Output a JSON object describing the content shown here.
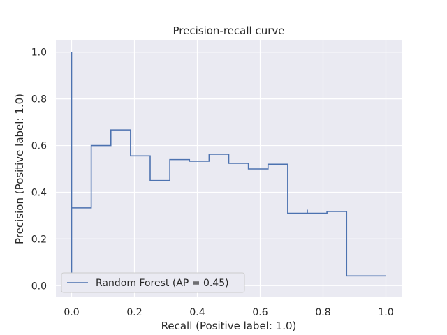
{
  "chart_data": {
    "type": "line",
    "title": "Precision-recall curve",
    "xlabel": "Recall (Positive label: 1.0)",
    "ylabel": "Precision (Positive label: 1.0)",
    "xlim": [
      -0.05,
      1.05
    ],
    "ylim": [
      -0.05,
      1.05
    ],
    "xticks": [
      0.0,
      0.2,
      0.4,
      0.6,
      0.8,
      1.0
    ],
    "yticks": [
      0.0,
      0.2,
      0.4,
      0.6,
      0.8,
      1.0
    ],
    "xtick_labels": [
      "0.0",
      "0.2",
      "0.4",
      "0.6",
      "0.8",
      "1.0"
    ],
    "ytick_labels": [
      "0.0",
      "0.2",
      "0.4",
      "0.6",
      "0.8",
      "1.0"
    ],
    "grid": true,
    "drawstyle": "steps-post",
    "legend_position": "lower-left",
    "colors": {
      "background": "#eaeaf2",
      "grid": "#ffffff",
      "line": "#4c72b0"
    },
    "series": [
      {
        "name": "Random Forest (AP = 0.45)",
        "recall": [
          1.0,
          0.875,
          0.875,
          0.8125,
          0.8125,
          0.75,
          0.75,
          0.6875,
          0.625,
          0.5625,
          0.5,
          0.4375,
          0.375,
          0.3125,
          0.3125,
          0.25,
          0.1875,
          0.125,
          0.0625,
          0.0625,
          0.0,
          0.0,
          0.0
        ],
        "precision": [
          0.0417,
          0.0417,
          0.318,
          0.318,
          0.31,
          0.325,
          0.31,
          0.52,
          0.5,
          0.524,
          0.563,
          0.533,
          0.54,
          0.5,
          0.45,
          0.556,
          0.667,
          0.6,
          0.5,
          0.333,
          0.5,
          0.05,
          1.0
        ]
      }
    ]
  }
}
